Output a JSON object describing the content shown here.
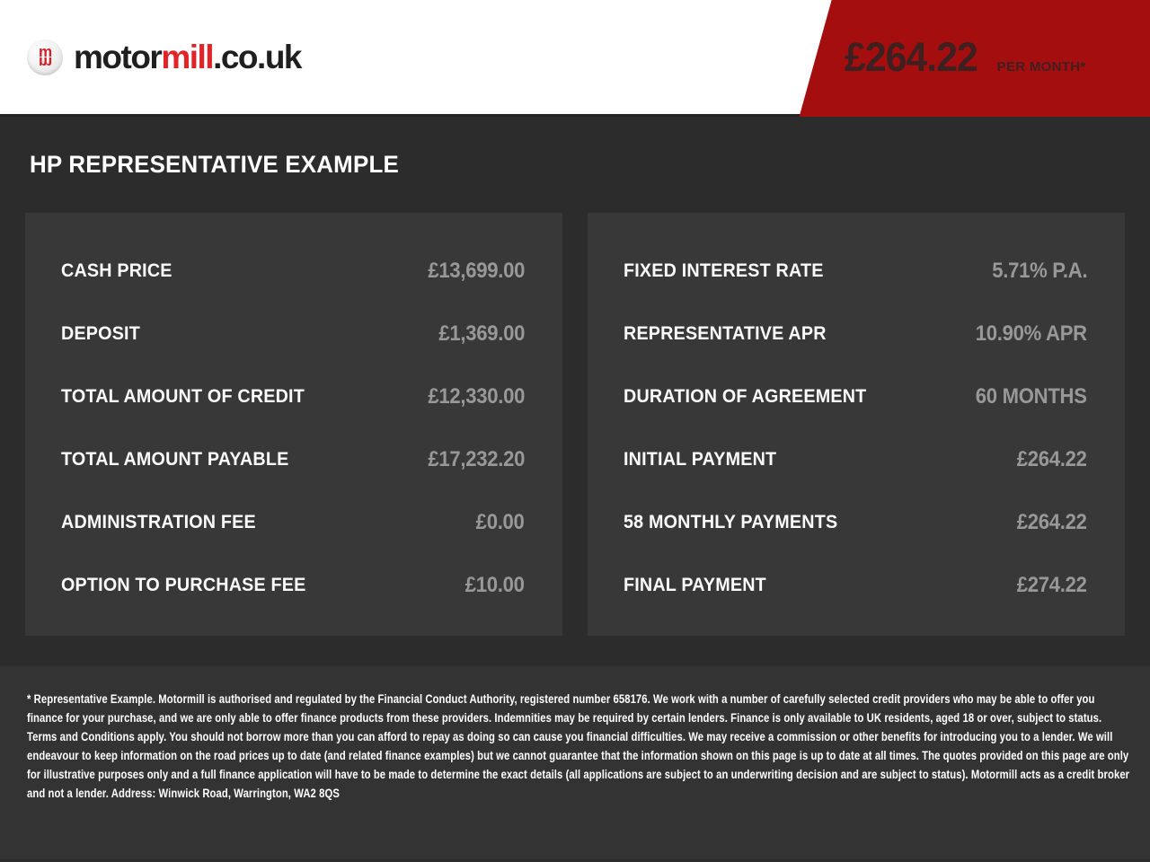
{
  "header": {
    "logo": {
      "badge_glyph": "m",
      "brand_black": "motor",
      "brand_red": "mill",
      "brand_suffix": ".co.uk"
    },
    "price_banner": {
      "amount": "£264.22",
      "per": "PER MONTH*"
    }
  },
  "title": "HP REPRESENTATIVE EXAMPLE",
  "panels": {
    "left": {
      "rows": [
        {
          "label": "CASH PRICE",
          "value": "£13,699.00"
        },
        {
          "label": "DEPOSIT",
          "value": "£1,369.00"
        },
        {
          "label": "TOTAL AMOUNT OF CREDIT",
          "value": "£12,330.00"
        },
        {
          "label": "TOTAL AMOUNT PAYABLE",
          "value": "£17,232.20"
        },
        {
          "label": "ADMINISTRATION FEE",
          "value": "£0.00"
        },
        {
          "label": "OPTION TO PURCHASE FEE",
          "value": "£10.00"
        }
      ]
    },
    "right": {
      "rows": [
        {
          "label": "FIXED INTEREST RATE",
          "value": "5.71% P.A."
        },
        {
          "label": "REPRESENTATIVE APR",
          "value": "10.90% APR"
        },
        {
          "label": "DURATION OF AGREEMENT",
          "value": "60 MONTHS"
        },
        {
          "label": "INITIAL PAYMENT",
          "value": "£264.22"
        },
        {
          "label": "58 MONTHLY PAYMENTS",
          "value": "£264.22"
        },
        {
          "label": "FINAL PAYMENT",
          "value": "£274.22"
        }
      ]
    }
  },
  "disclaimer": {
    "text": "* Representative Example. Motormill is authorised and regulated by the Financial Conduct Authority, registered number 658176. We work with a number of carefully selected credit providers who may be able to offer you finance for your purchase, and we are only able to offer finance products from these providers. Indemnities may be required by certain lenders. Finance is only available to UK residents, aged 18 or over, subject to status. Terms and Conditions apply. You should not borrow more than you can afford to repay as doing so can cause you financial difficulties. We may receive a commission or other benefits for introducing you to a lender. We will endeavour to keep information on the road prices up to date (and related finance examples) but we cannot guarantee that the information shown on this page is up to date at all times. The quotes provided on this page are only for illustrative purposes only and a full finance application will have to be made to determine the exact details (all applications are subject to an underwriting decision and are subject to status). Motormill acts as a credit broker and not a lender. Address: Winwick Road, Warrington, WA2 8QS"
  },
  "colors": {
    "banner_red": "#a50e0e",
    "brand_red": "#e02428",
    "page_background": "#2c2c2c",
    "panel_background": "#383838",
    "footer_background": "#333333",
    "value_gray": "#989898",
    "label_white": "#fafafa"
  }
}
